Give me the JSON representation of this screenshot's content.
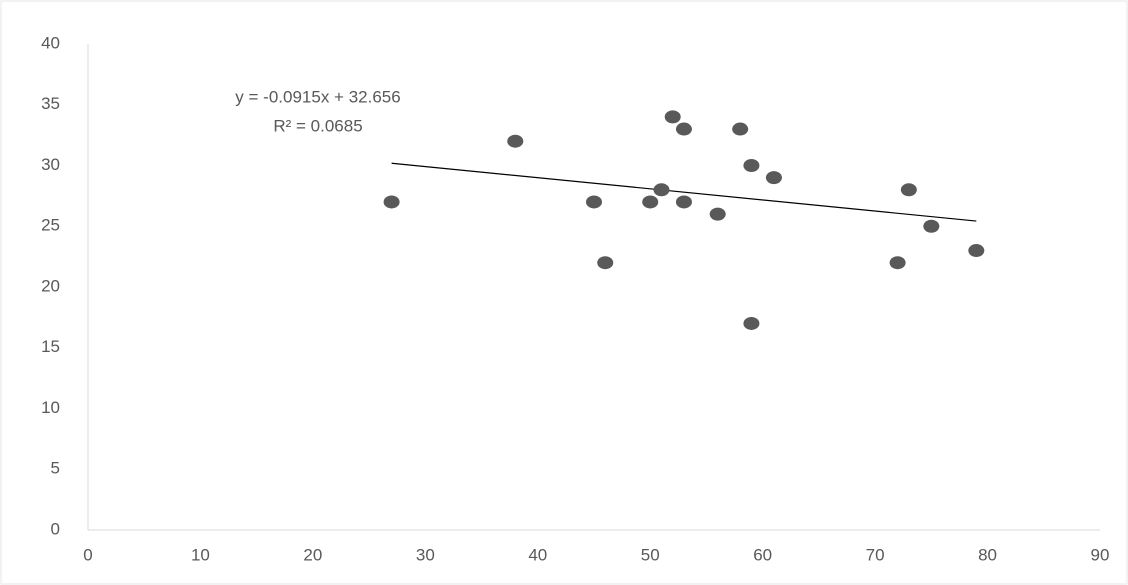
{
  "chart_data": {
    "type": "scatter",
    "x": [
      27,
      38,
      45,
      46,
      50,
      51,
      52,
      53,
      53,
      56,
      58,
      59,
      59,
      61,
      72,
      73,
      75,
      79
    ],
    "values": [
      27,
      32,
      27,
      22,
      27,
      28,
      34,
      33,
      27,
      26,
      33,
      30,
      17,
      29,
      22,
      28,
      25,
      23
    ],
    "color": "#595959",
    "xlim": [
      0,
      90
    ],
    "xticks": [
      0,
      10,
      20,
      30,
      40,
      50,
      60,
      70,
      80,
      90
    ],
    "ylim": [
      0,
      40
    ],
    "yticks": [
      0,
      5,
      10,
      15,
      20,
      25,
      30,
      35,
      40
    ],
    "grid": false,
    "trendline": {
      "slope": -0.0915,
      "intercept": 32.656,
      "color": "#000000",
      "equation": "y = -0.0915x + 32.656",
      "r2": "R² = 0.0685"
    }
  }
}
